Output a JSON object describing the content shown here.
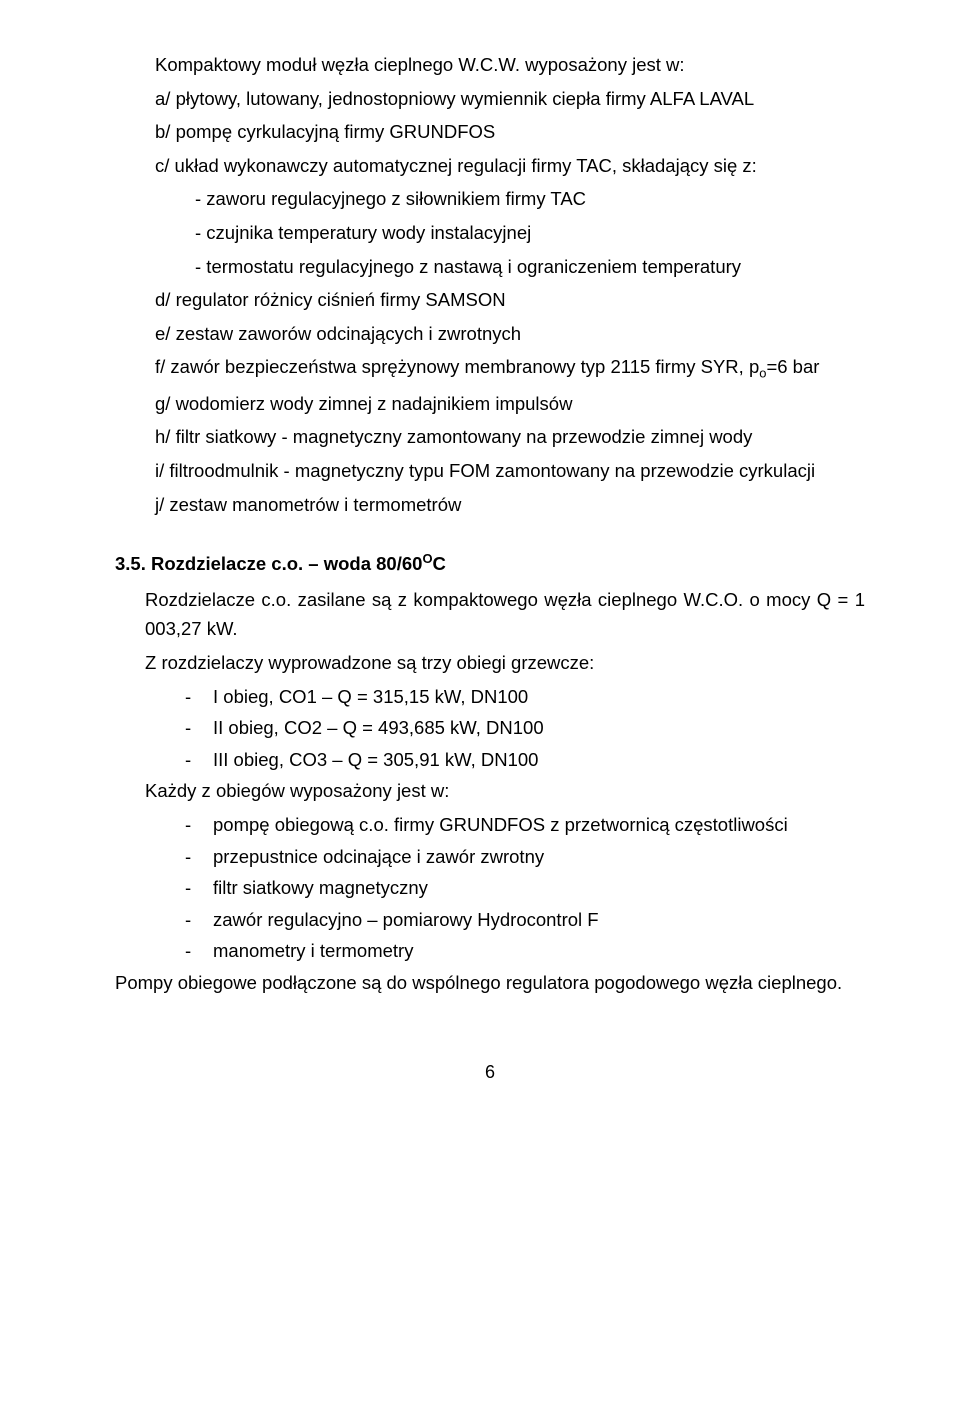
{
  "intro_line": "Kompaktowy moduł węzła cieplnego W.C.W. wyposażony jest w:",
  "items": {
    "a": "a/ płytowy, lutowany, jednostopniowy wymiennik ciepła firmy ALFA LAVAL",
    "b": "b/ pompę cyrkulacyjną firmy GRUNDFOS",
    "c": "c/ układ wykonawczy automatycznej regulacji firmy TAC, składający się z:",
    "c1": "- zaworu regulacyjnego  z siłownikiem firmy TAC",
    "c2": "- czujnika temperatury wody instalacyjnej",
    "c3": "- termostatu regulacyjnego z nastawą i ograniczeniem temperatury",
    "d": "d/ regulator różnicy ciśnień  firmy SAMSON",
    "e": "e/ zestaw zaworów odcinających i zwrotnych",
    "f_pre": "f/ zawór  bezpieczeństwa sprężynowy membranowy typ 2115 firmy SYR, p",
    "f_sub": "o",
    "f_post": "=6 bar",
    "g": "g/ wodomierz wody zimnej z nadajnikiem impulsów",
    "h": "h/ filtr siatkowy - magnetyczny zamontowany na przewodzie zimnej wody",
    "i": "i/ filtroodmulnik - magnetyczny typu FOM zamontowany na przewodzie cyrkulacji",
    "j": "j/ zestaw manometrów i termometrów"
  },
  "section35": {
    "heading_pre": "3.5. Rozdzielacze c.o. – woda 80/60",
    "heading_sup": "O",
    "heading_post": "C",
    "body1": "Rozdzielacze c.o. zasilane są z kompaktowego węzła cieplnego W.C.O. o mocy Q = 1 003,27 kW.",
    "body2": "Z rozdzielaczy wyprowadzone są trzy obiegi grzewcze:",
    "circuits": [
      "I obieg, CO1 – Q =  315,15 kW,   DN100",
      "II obieg, CO2 – Q = 493,685 kW,  DN100",
      "III obieg, CO3 – Q =  305,91 kW,   DN100"
    ],
    "body3": "Każdy z obiegów wyposażony jest w:",
    "equip": [
      "pompę obiegową c.o. firmy GRUNDFOS z przetwornicą częstotliwości",
      "przepustnice odcinające i zawór zwrotny",
      "filtr siatkowy magnetyczny",
      "zawór regulacyjno – pomiarowy Hydrocontrol F",
      "manometry i termometry"
    ],
    "body4": "Pompy obiegowe podłączone są do wspólnego regulatora pogodowego węzła cieplnego."
  },
  "page_number": "6"
}
